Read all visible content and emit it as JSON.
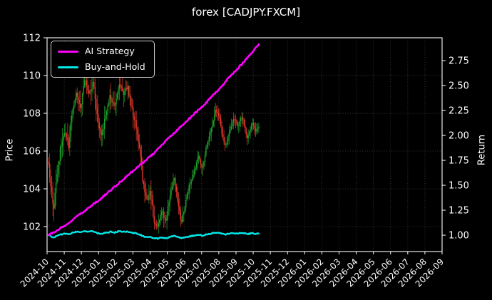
{
  "title": "forex [CADJPY.FXCM]",
  "legend": {
    "items": [
      {
        "label": "AI Strategy",
        "color": "#ff00ff"
      },
      {
        "label": "Buy-and-Hold",
        "color": "#00e8e8"
      }
    ]
  },
  "chart_data": {
    "type": "candlestick+line",
    "title": "forex [CADJPY.FXCM]",
    "background": "#000000",
    "text_color": "#ffffff",
    "grid": {
      "on": true,
      "style": "dotted",
      "color": "#3a3a3a"
    },
    "x_axis": {
      "tick_labels": [
        "2024-10",
        "2024-11",
        "2024-12",
        "2025-01",
        "2025-02",
        "2025-03",
        "2025-04",
        "2025-05",
        "2025-06",
        "2025-07",
        "2025-08",
        "2025-09",
        "2025-10",
        "2025-11",
        "2025-12",
        "2026-01",
        "2026-02",
        "2026-03",
        "2026-04",
        "2026-05",
        "2026-06",
        "2026-07",
        "2026-08",
        "2026-09"
      ],
      "label_rotation_deg": 45,
      "data_start_frac": 0.004,
      "data_end_frac": 0.536
    },
    "left_axis": {
      "label": "Price",
      "tick_labels": [
        "102",
        "104",
        "106",
        "108",
        "110",
        "112"
      ],
      "tick_values": [
        102,
        104,
        106,
        108,
        110,
        112
      ],
      "min": 100.68,
      "max": 112.0
    },
    "right_axis": {
      "label": "Return",
      "tick_labels": [
        "1.00",
        "1.25",
        "1.50",
        "1.75",
        "2.00",
        "2.25",
        "2.50",
        "2.75"
      ],
      "tick_values": [
        1.0,
        1.25,
        1.5,
        1.75,
        2.0,
        2.25,
        2.5,
        2.75
      ],
      "min": 0.836,
      "max": 2.979
    },
    "candles": {
      "up_color": "#1ea32c",
      "down_color": "#e8392a",
      "count": 200,
      "seed": 12,
      "body_noise": 0.14,
      "wick_noise": 0.55,
      "vol_profile": [
        [
          0,
          1.25
        ],
        [
          0.2,
          1.3
        ],
        [
          0.35,
          1.1
        ],
        [
          0.45,
          1.05
        ],
        [
          0.55,
          0.95
        ],
        [
          0.65,
          0.8
        ],
        [
          0.75,
          0.75
        ],
        [
          0.85,
          0.7
        ],
        [
          1,
          0.65
        ]
      ],
      "close_anchors": [
        [
          0.0,
          105.4
        ],
        [
          0.01,
          104.1
        ],
        [
          0.024,
          103.0
        ],
        [
          0.037,
          104.5
        ],
        [
          0.057,
          106.2
        ],
        [
          0.078,
          107.0
        ],
        [
          0.095,
          106.2
        ],
        [
          0.111,
          108.0
        ],
        [
          0.132,
          109.2
        ],
        [
          0.152,
          108.3
        ],
        [
          0.172,
          109.9
        ],
        [
          0.193,
          109.0
        ],
        [
          0.213,
          109.7
        ],
        [
          0.233,
          107.7
        ],
        [
          0.253,
          106.8
        ],
        [
          0.274,
          108.1
        ],
        [
          0.294,
          109.0
        ],
        [
          0.314,
          108.3
        ],
        [
          0.334,
          109.6
        ],
        [
          0.355,
          109.0
        ],
        [
          0.375,
          109.4
        ],
        [
          0.395,
          108.3
        ],
        [
          0.416,
          107.3
        ],
        [
          0.436,
          105.9
        ],
        [
          0.449,
          104.3
        ],
        [
          0.466,
          103.3
        ],
        [
          0.483,
          103.9
        ],
        [
          0.5,
          102.4
        ],
        [
          0.517,
          101.9
        ],
        [
          0.537,
          102.9
        ],
        [
          0.557,
          102.3
        ],
        [
          0.578,
          103.7
        ],
        [
          0.598,
          104.6
        ],
        [
          0.618,
          103.1
        ],
        [
          0.632,
          102.2
        ],
        [
          0.652,
          103.3
        ],
        [
          0.672,
          104.3
        ],
        [
          0.693,
          105.0
        ],
        [
          0.713,
          105.7
        ],
        [
          0.733,
          105.1
        ],
        [
          0.753,
          106.4
        ],
        [
          0.774,
          107.2
        ],
        [
          0.794,
          108.2
        ],
        [
          0.814,
          107.7
        ],
        [
          0.828,
          106.7
        ],
        [
          0.841,
          106.2
        ],
        [
          0.861,
          107.1
        ],
        [
          0.882,
          107.7
        ],
        [
          0.902,
          107.3
        ],
        [
          0.922,
          107.9
        ],
        [
          0.943,
          106.7
        ],
        [
          0.956,
          107.0
        ],
        [
          0.97,
          107.5
        ],
        [
          0.983,
          107.0
        ],
        [
          1.0,
          107.3
        ]
      ]
    },
    "series": [
      {
        "name": "AI Strategy",
        "axis": "right",
        "color": "#ff00ff",
        "width": 2.6,
        "jitter": 0.008,
        "points": [
          [
            0.0,
            1.0
          ],
          [
            0.05,
            1.06
          ],
          [
            0.1,
            1.13
          ],
          [
            0.15,
            1.21
          ],
          [
            0.2,
            1.29
          ],
          [
            0.25,
            1.37
          ],
          [
            0.3,
            1.46
          ],
          [
            0.35,
            1.55
          ],
          [
            0.4,
            1.64
          ],
          [
            0.45,
            1.73
          ],
          [
            0.5,
            1.82
          ],
          [
            0.55,
            1.93
          ],
          [
            0.6,
            2.03
          ],
          [
            0.65,
            2.13
          ],
          [
            0.7,
            2.23
          ],
          [
            0.75,
            2.33
          ],
          [
            0.8,
            2.44
          ],
          [
            0.85,
            2.56
          ],
          [
            0.9,
            2.67
          ],
          [
            0.95,
            2.79
          ],
          [
            1.0,
            2.91
          ]
        ]
      },
      {
        "name": "Buy-and-Hold",
        "axis": "right",
        "color": "#00e8e8",
        "width": 2.4,
        "jitter": 0.005,
        "points": [
          [
            0,
            1.0
          ],
          [
            0.01,
            0.988
          ],
          [
            0.024,
            0.977
          ],
          [
            0.037,
            0.991
          ],
          [
            0.057,
            1.007
          ],
          [
            0.078,
            1.015
          ],
          [
            0.095,
            1.007
          ],
          [
            0.111,
            1.024
          ],
          [
            0.132,
            1.036
          ],
          [
            0.152,
            1.027
          ],
          [
            0.172,
            1.042
          ],
          [
            0.193,
            1.034
          ],
          [
            0.213,
            1.04
          ],
          [
            0.233,
            1.022
          ],
          [
            0.253,
            1.013
          ],
          [
            0.274,
            1.025
          ],
          [
            0.294,
            1.034
          ],
          [
            0.314,
            1.027
          ],
          [
            0.334,
            1.039
          ],
          [
            0.355,
            1.034
          ],
          [
            0.375,
            1.037
          ],
          [
            0.395,
            1.027
          ],
          [
            0.416,
            1.018
          ],
          [
            0.436,
            1.004
          ],
          [
            0.449,
            0.989
          ],
          [
            0.466,
            0.98
          ],
          [
            0.483,
            0.985
          ],
          [
            0.5,
            0.971
          ],
          [
            0.517,
            0.966
          ],
          [
            0.537,
            0.976
          ],
          [
            0.557,
            0.97
          ],
          [
            0.578,
            0.983
          ],
          [
            0.598,
            0.992
          ],
          [
            0.618,
            0.978
          ],
          [
            0.632,
            0.969
          ],
          [
            0.652,
            0.98
          ],
          [
            0.672,
            0.989
          ],
          [
            0.693,
            0.996
          ],
          [
            0.713,
            1.002
          ],
          [
            0.733,
            0.997
          ],
          [
            0.753,
            1.009
          ],
          [
            0.774,
            1.017
          ],
          [
            0.794,
            1.026
          ],
          [
            0.814,
            1.021
          ],
          [
            0.828,
            1.012
          ],
          [
            0.841,
            1.007
          ],
          [
            0.861,
            1.016
          ],
          [
            0.882,
            1.021
          ],
          [
            0.902,
            1.018
          ],
          [
            0.922,
            1.023
          ],
          [
            0.943,
            1.012
          ],
          [
            0.956,
            1.015
          ],
          [
            0.97,
            1.019
          ],
          [
            0.983,
            1.015
          ],
          [
            1.0,
            1.017
          ]
        ]
      }
    ]
  }
}
